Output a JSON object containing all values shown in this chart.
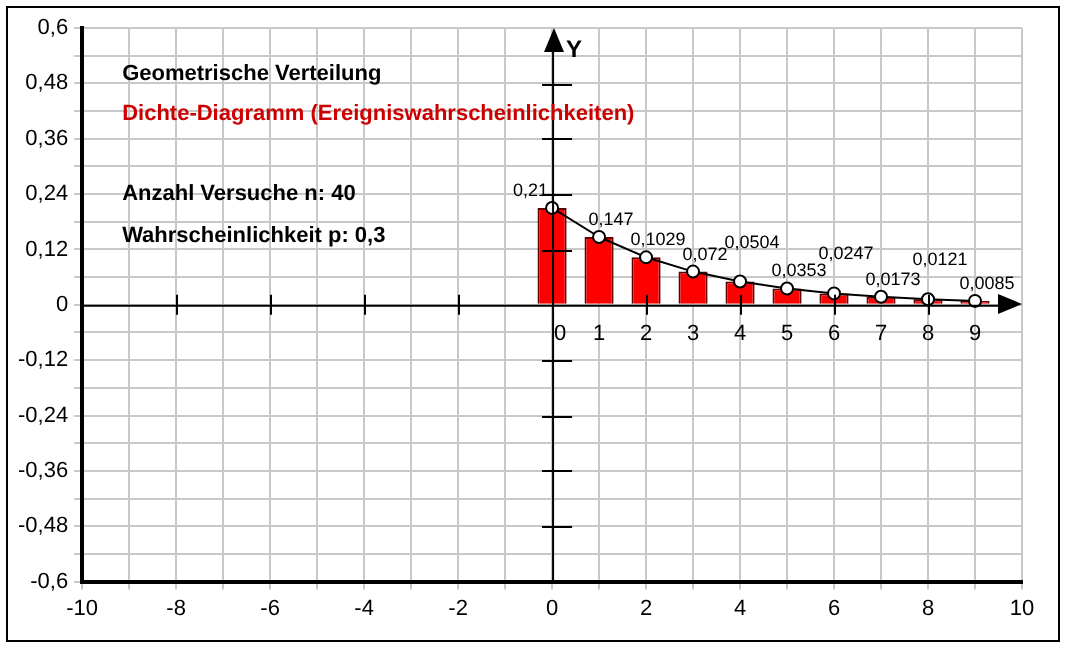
{
  "chart_data": {
    "type": "bar",
    "title": "Geometrische Verteilung",
    "subtitle": "Dichte-Diagramm (Ereigniswahrscheinlichkeiten)",
    "ylabel": "Y",
    "annotations": [
      "Anzahl Versuche n: 40",
      "Wahrscheinlichkeit p: 0,3",
      {
        "text": "0",
        "x": 0,
        "y": 0
      },
      {
        "text": "1",
        "x": 1,
        "y": 0
      },
      {
        "text": "2",
        "x": 2,
        "y": 0
      },
      {
        "text": "3",
        "x": 3,
        "y": 0
      },
      {
        "text": "4",
        "x": 4,
        "y": 0
      },
      {
        "text": "5",
        "x": 5,
        "y": 0
      },
      {
        "text": "6",
        "x": 6,
        "y": 0
      },
      {
        "text": "7",
        "x": 7,
        "y": 0
      },
      {
        "text": "8",
        "x": 8,
        "y": 0
      },
      {
        "text": "9",
        "x": 9,
        "y": 0
      }
    ],
    "series": [
      {
        "color": "#ff0000",
        "x": [
          0,
          1,
          2,
          3,
          4,
          5,
          6,
          7,
          8,
          9
        ],
        "values": [
          0.21,
          0.147,
          0.1029,
          0.072,
          0.0504,
          0.0353,
          0.0247,
          0.0173,
          0.0121,
          0.0085
        ],
        "value_labels": [
          "0,21",
          "0,147",
          "0,1029",
          "0,072",
          "0,0504",
          "0,0353",
          "0,0247",
          "0,0173",
          "0,0121",
          "0,0085"
        ]
      },
      {
        "type": "line",
        "color": "#000000",
        "marker": "circle",
        "x": [
          0,
          1,
          2,
          3,
          4,
          5,
          6,
          7,
          8,
          9
        ],
        "values": [
          0.21,
          0.147,
          0.1029,
          0.072,
          0.0504,
          0.0353,
          0.0247,
          0.0173,
          0.0121,
          0.0085
        ]
      }
    ],
    "xlim": [
      -10,
      10
    ],
    "xticks": [
      -10,
      {
        "value": -9,
        "label": null
      },
      -8,
      {
        "value": -7,
        "label": null
      },
      -6,
      {
        "value": -5,
        "label": null
      },
      -4,
      {
        "value": -3,
        "label": null
      },
      -2,
      {
        "value": -1,
        "label": null
      },
      0,
      {
        "value": 1,
        "label": null
      },
      2,
      {
        "value": 3,
        "label": null
      },
      4,
      {
        "value": 5,
        "label": null
      },
      6,
      {
        "value": 7,
        "label": null
      },
      8,
      {
        "value": 9,
        "label": null
      },
      10
    ],
    "ylim": [
      -0.6,
      0.6
    ],
    "yticks": [
      {
        "value": -0.6,
        "label": "-0,6"
      },
      {
        "value": -0.54,
        "label": null
      },
      {
        "value": -0.48,
        "label": "-0,48"
      },
      {
        "value": -0.42,
        "label": null
      },
      {
        "value": -0.36,
        "label": "-0,36"
      },
      {
        "value": -0.3,
        "label": null
      },
      {
        "value": -0.24,
        "label": "-0,24"
      },
      {
        "value": -0.18,
        "label": null
      },
      {
        "value": -0.12,
        "label": "-0,12"
      },
      {
        "value": -0.06,
        "label": null
      },
      0,
      {
        "value": 0.06,
        "label": null
      },
      {
        "value": 0.12,
        "label": "0,12"
      },
      {
        "value": 0.18,
        "label": null
      },
      {
        "value": 0.24,
        "label": "0,24"
      },
      {
        "value": 0.3,
        "label": null
      },
      {
        "value": 0.36,
        "label": "0,36"
      },
      {
        "value": 0.42,
        "label": null
      },
      {
        "value": 0.48,
        "label": "0,48"
      },
      {
        "value": 0.54,
        "label": null
      },
      {
        "value": 0.6,
        "label": "0,6"
      }
    ],
    "grid": true,
    "legend": false
  }
}
